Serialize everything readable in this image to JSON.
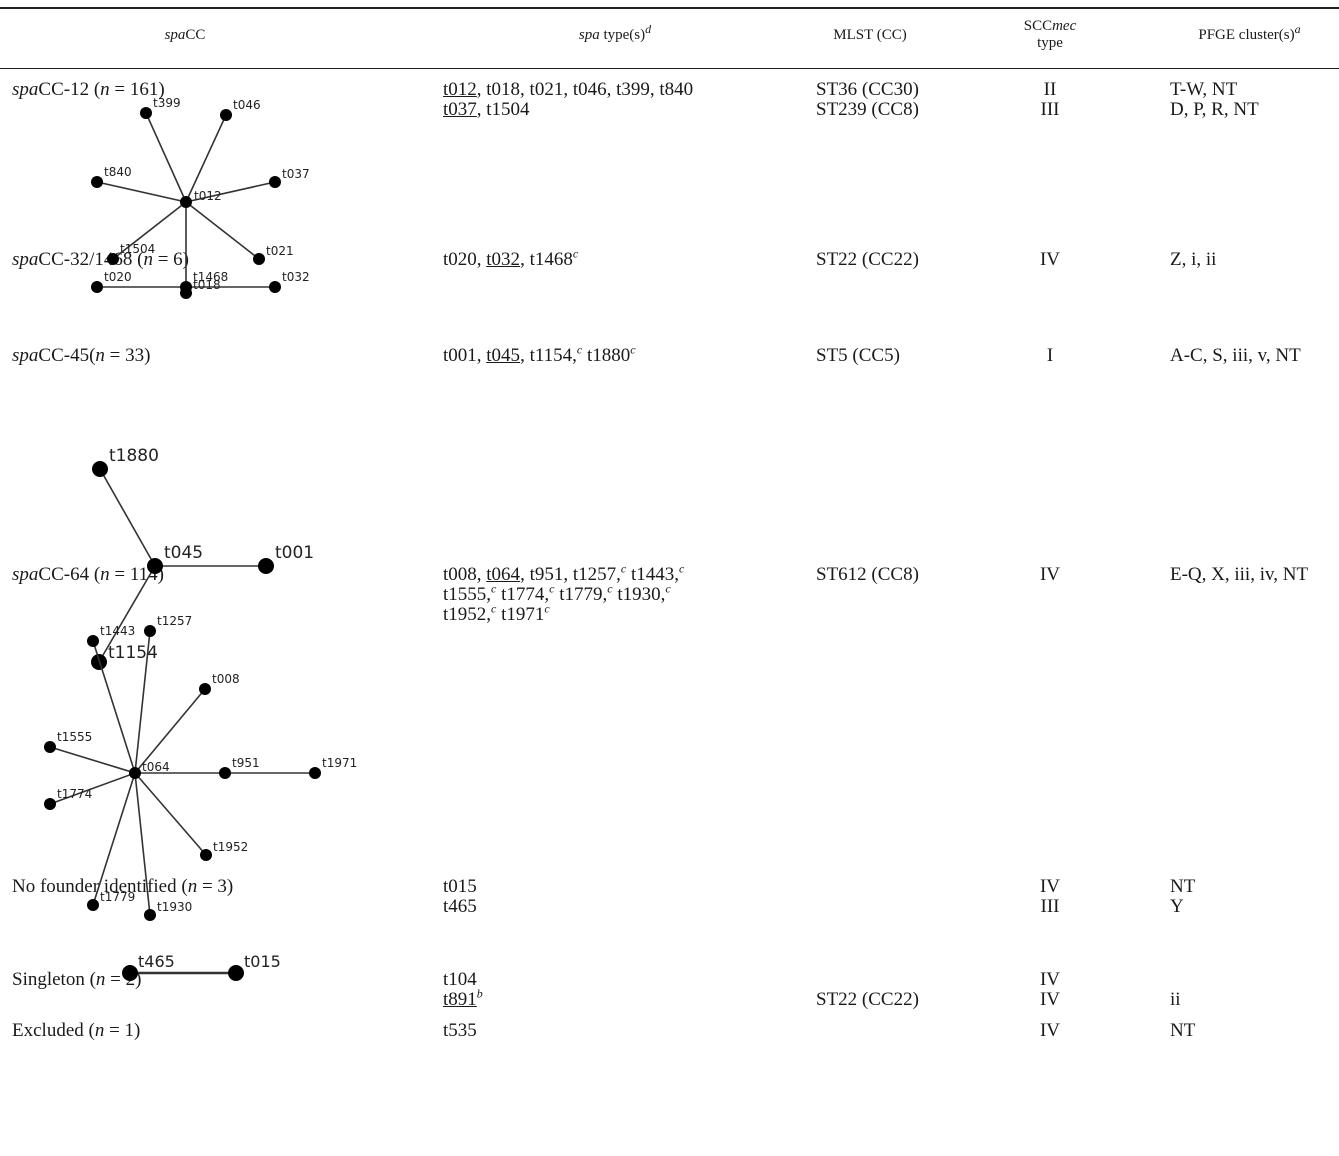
{
  "header": {
    "col1": {
      "pre": "",
      "ital": "spa",
      "post": "CC"
    },
    "col2": {
      "ital": "spa",
      "post": " type(s)",
      "sup": "d"
    },
    "col3": "MLST (CC)",
    "col4": {
      "pre": "SCC",
      "ital": "mec",
      "line2": "type"
    },
    "col5": {
      "post": "PFGE cluster(s)",
      "sup": "a"
    }
  },
  "rows": [
    {
      "label": {
        "ital": "spa",
        "post": "CC-12 (",
        "n_ital": "n",
        "n": " = 161)"
      },
      "types_lines": [
        [
          {
            "t": "t012",
            "u": true
          },
          {
            "t": ", t018, t021, t046, t399, t840"
          }
        ],
        [
          {
            "t": "t037",
            "u": true
          },
          {
            "t": ", t1504"
          }
        ]
      ],
      "mlst": [
        "ST36 (CC30)",
        "ST239 (CC8)"
      ],
      "scc": [
        "II",
        "III"
      ],
      "pfge": [
        "T-W, NT",
        "D, P, R, NT"
      ],
      "nodes": [
        "t012",
        "t399",
        "t046",
        "t840",
        "t037",
        "t1504",
        "t021",
        "t018"
      ]
    },
    {
      "label": {
        "ital": "spa",
        "post": "CC-32/1468 (",
        "n_ital": "n",
        "n": " = 6)"
      },
      "types_lines": [
        [
          {
            "t": "t020, "
          },
          {
            "t": "t032",
            "u": true
          },
          {
            "t": ", t1468"
          },
          {
            "t": "c",
            "sup": true
          }
        ]
      ],
      "mlst": [
        "ST22 (CC22)"
      ],
      "scc": [
        "IV"
      ],
      "pfge": [
        "Z, i, ii"
      ],
      "nodes": [
        "t020",
        "t1468",
        "t032"
      ]
    },
    {
      "label": {
        "ital": "spa",
        "post": "CC-45(",
        "n_ital": "n",
        "n": " = 33)"
      },
      "types_lines": [
        [
          {
            "t": "t001, "
          },
          {
            "t": "t045",
            "u": true
          },
          {
            "t": ", t1154,"
          },
          {
            "t": "c",
            "sup": true
          },
          {
            "t": " t1880"
          },
          {
            "t": "c",
            "sup": true
          }
        ]
      ],
      "mlst": [
        "ST5 (CC5)"
      ],
      "scc": [
        "I"
      ],
      "pfge": [
        "A-C, S, iii, v, NT"
      ],
      "nodes": [
        "t1880",
        "t045",
        "t001",
        "t1154"
      ]
    },
    {
      "label": {
        "ital": "spa",
        "post": "CC-64 (",
        "n_ital": "n",
        "n": " = 114)"
      },
      "types_lines": [
        [
          {
            "t": "t008, "
          },
          {
            "t": "t064",
            "u": true
          },
          {
            "t": ", t951, t1257,"
          },
          {
            "t": "c",
            "sup": true
          },
          {
            "t": " t1443,"
          },
          {
            "t": "c",
            "sup": true
          }
        ],
        [
          {
            "t": " t1555,"
          },
          {
            "t": "c",
            "sup": true
          },
          {
            "t": " t1774,"
          },
          {
            "t": "c",
            "sup": true
          },
          {
            "t": " t1779,"
          },
          {
            "t": "c",
            "sup": true
          },
          {
            "t": " t1930,"
          },
          {
            "t": "c",
            "sup": true
          }
        ],
        [
          {
            "t": " t1952,"
          },
          {
            "t": "c",
            "sup": true
          },
          {
            "t": " t1971"
          },
          {
            "t": "c",
            "sup": true
          }
        ]
      ],
      "mlst": [
        "ST612 (CC8)"
      ],
      "scc": [
        "IV"
      ],
      "pfge": [
        "E-Q, X, iii, iv, NT"
      ],
      "nodes": [
        "t1443",
        "t1257",
        "t008",
        "t1555",
        "t064",
        "t951",
        "t1971",
        "t1774",
        "t1952",
        "t1779",
        "t1930"
      ]
    },
    {
      "label": {
        "plain": "No founder identified (",
        "n_ital": "n",
        "n": " = 3)"
      },
      "types_lines": [
        [
          {
            "t": "t015"
          }
        ],
        [
          {
            "t": "t465"
          }
        ]
      ],
      "mlst": [],
      "scc": [
        "IV",
        "III"
      ],
      "pfge": [
        "NT",
        "Y"
      ],
      "nodes": [
        "t465",
        "t015"
      ]
    },
    {
      "label": {
        "plain": "Singleton (",
        "n_ital": "n",
        "n": " = 2)"
      },
      "types_lines": [
        [
          {
            "t": "t104"
          }
        ],
        [
          {
            "t": "t891",
            "u": true
          },
          {
            "t": "b",
            "sup": true
          }
        ]
      ],
      "mlst": [
        "",
        "ST22 (CC22)"
      ],
      "scc": [
        "IV",
        "IV"
      ],
      "pfge": [
        "",
        "ii"
      ],
      "nodes": []
    },
    {
      "label": {
        "plain": "Excluded (",
        "n_ital": "n",
        "n": " = 1)"
      },
      "types_lines": [
        [
          {
            "t": "t535"
          }
        ]
      ],
      "mlst": [],
      "scc": [
        "IV"
      ],
      "pfge": [
        "NT"
      ],
      "nodes": []
    }
  ]
}
